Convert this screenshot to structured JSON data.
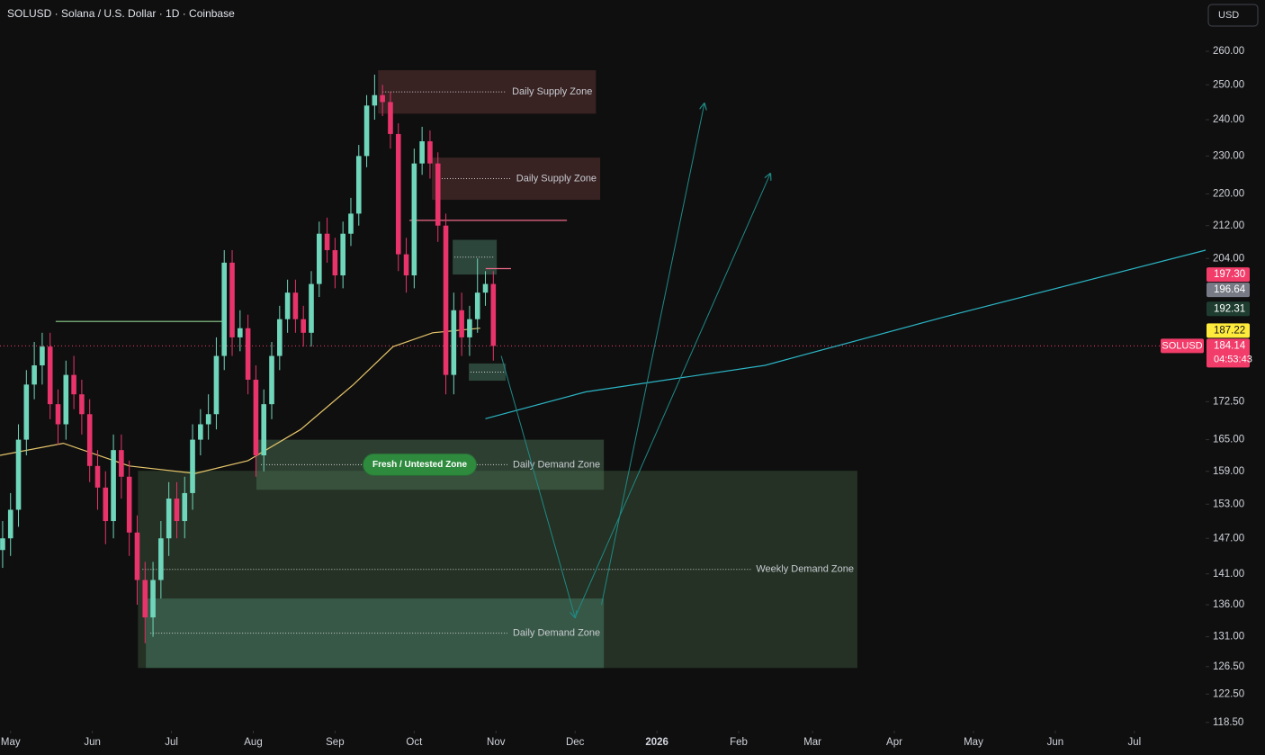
{
  "chart_data": {
    "type": "candlestick",
    "title": "SOLUSD · Solana / U.S. Dollar · 1D · Coinbase",
    "currency_button": "USD",
    "log_scale": true,
    "grid": false,
    "up_color": "#6fd6bb",
    "down_color": "#e8336b",
    "ylim": [
      117.6,
      276.1
    ],
    "yticks": [
      {
        "value": 260,
        "label": "260.00"
      },
      {
        "value": 250,
        "label": "250.00"
      },
      {
        "value": 240,
        "label": "240.00"
      },
      {
        "value": 230,
        "label": "230.00"
      },
      {
        "value": 220,
        "label": "220.00"
      },
      {
        "value": 212,
        "label": "212.00"
      },
      {
        "value": 204,
        "label": "204.00"
      },
      {
        "value": 172.5,
        "label": "172.50"
      },
      {
        "value": 165,
        "label": "165.00"
      },
      {
        "value": 159,
        "label": "159.00"
      },
      {
        "value": 153,
        "label": "153.00"
      },
      {
        "value": 147,
        "label": "147.00"
      },
      {
        "value": 141,
        "label": "141.00"
      },
      {
        "value": 136,
        "label": "136.00"
      },
      {
        "value": 131,
        "label": "131.00"
      },
      {
        "value": 126.5,
        "label": "126.50"
      },
      {
        "value": 122.5,
        "label": "122.50"
      },
      {
        "value": 118.5,
        "label": "118.50"
      }
    ],
    "xlim": [
      -4,
      453
    ],
    "xticks": [
      {
        "value": 0,
        "label": "May"
      },
      {
        "value": 31,
        "label": "Jun"
      },
      {
        "value": 61,
        "label": "Jul"
      },
      {
        "value": 92,
        "label": "Aug"
      },
      {
        "value": 123,
        "label": "Sep"
      },
      {
        "value": 153,
        "label": "Oct"
      },
      {
        "value": 184,
        "label": "Nov"
      },
      {
        "value": 214,
        "label": "Dec"
      },
      {
        "value": 245,
        "label": "2026"
      },
      {
        "value": 276,
        "label": "Feb"
      },
      {
        "value": 304,
        "label": "Mar"
      },
      {
        "value": 335,
        "label": "Apr"
      },
      {
        "value": 365,
        "label": "May"
      },
      {
        "value": 396,
        "label": "Jun"
      },
      {
        "value": 426,
        "label": "Jul"
      }
    ],
    "x": [
      -3,
      0,
      3,
      6,
      9,
      12,
      15,
      18,
      21,
      24,
      27,
      30,
      33,
      36,
      39,
      42,
      45,
      48,
      51,
      54,
      57,
      60,
      63,
      66,
      69,
      72,
      75,
      78,
      81,
      84,
      87,
      90,
      93,
      96,
      99,
      102,
      105,
      108,
      111,
      114,
      117,
      120,
      123,
      126,
      129,
      132,
      135,
      138,
      141,
      144,
      147,
      150,
      153,
      156,
      159,
      162,
      165,
      168,
      171,
      174,
      177,
      180,
      183
    ],
    "open": [
      145,
      147,
      152,
      165,
      176,
      180,
      184,
      172,
      168,
      178,
      174,
      170,
      160,
      156,
      150,
      163,
      158,
      148,
      140,
      134,
      140,
      147,
      154,
      150,
      155,
      165,
      168,
      170,
      182,
      203,
      186,
      188,
      177,
      162,
      172,
      182,
      190,
      196,
      190,
      187,
      198,
      210,
      206,
      200,
      210,
      215,
      230,
      244,
      247,
      245,
      236,
      205,
      200,
      228,
      234,
      228,
      212,
      178,
      192,
      186,
      190,
      196,
      198
    ],
    "high": [
      150,
      155,
      168,
      179,
      185,
      187,
      187,
      175,
      181,
      182,
      177,
      173,
      163,
      159,
      166,
      166,
      161,
      151,
      143,
      143,
      150,
      157,
      157,
      158,
      168,
      171,
      174,
      186,
      206,
      206,
      192,
      191,
      180,
      175,
      185,
      193,
      199,
      199,
      193,
      201,
      213,
      214,
      209,
      213,
      219,
      233,
      247,
      253,
      250,
      248,
      239,
      209,
      232,
      238,
      237,
      231,
      215,
      196,
      196,
      193,
      204,
      201,
      201
    ],
    "low": [
      142,
      144,
      149,
      162,
      173,
      176,
      169,
      164,
      165,
      171,
      166,
      157,
      152,
      146,
      147,
      154,
      144,
      136,
      130,
      131,
      137,
      144,
      147,
      147,
      152,
      162,
      165,
      167,
      179,
      182,
      183,
      174,
      158,
      159,
      169,
      179,
      187,
      187,
      184,
      184,
      195,
      203,
      197,
      197,
      207,
      212,
      227,
      240,
      241,
      232,
      201,
      196,
      197,
      225,
      224,
      208,
      174,
      174,
      182,
      182,
      187,
      193,
      181
    ],
    "close": [
      147,
      152,
      165,
      176,
      180,
      184,
      172,
      168,
      178,
      174,
      170,
      160,
      156,
      150,
      163,
      158,
      148,
      140,
      134,
      140,
      147,
      154,
      150,
      155,
      165,
      168,
      170,
      182,
      203,
      186,
      188,
      177,
      162,
      172,
      182,
      190,
      196,
      190,
      187,
      198,
      210,
      206,
      200,
      210,
      215,
      230,
      244,
      247,
      245,
      236,
      205,
      200,
      228,
      234,
      228,
      212,
      178,
      192,
      186,
      190,
      196,
      198,
      184.14
    ],
    "zones": [
      {
        "label": "Weekly Demand Zone",
        "x": [
          48.3,
          321.0
        ],
        "y": [
          126.3,
          159.1
        ],
        "color": "#3d5a3d"
      },
      {
        "label": "Daily  Supply Zone",
        "x": [
          139.3,
          221.9
        ],
        "y": [
          241.7,
          254.3
        ],
        "color": "#6b3a3a"
      },
      {
        "label": "Daily Supply Zone",
        "x": [
          159.7,
          223.5
        ],
        "y": [
          218.5,
          229.6
        ],
        "color": "#6b3a3a"
      },
      {
        "label": "Daily Demand Zone",
        "x": [
          93.2,
          224.9
        ],
        "y": [
          155.6,
          165.0
        ],
        "color": "#4f7a5a",
        "badge": "Fresh / Untested Zone"
      },
      {
        "label": "Daily Demand Zone",
        "x": [
          51.3,
          224.9
        ],
        "y": [
          126.3,
          137.0
        ],
        "color": "#4f8a72"
      }
    ],
    "boxes": [
      {
        "x": [
          167.6,
          184.3
        ],
        "y": [
          200.2,
          208.5
        ],
        "color": "#4f8a72"
      },
      {
        "x": [
          173.7,
          187.7
        ],
        "y": [
          176.8,
          180.4
        ],
        "color": "#4f8a72"
      }
    ],
    "lines": [
      {
        "color": "#e5c56a",
        "x": [
          -4,
          20,
          45,
          70,
          90,
          110,
          130,
          145,
          160,
          178
        ],
        "values": [
          162,
          164.3,
          160,
          158.6,
          161,
          167,
          176,
          184,
          187,
          188
        ]
      },
      {
        "color": "#2bb5c5",
        "x": [
          180,
          218,
          286,
          354,
          453
        ],
        "values": [
          169.1,
          174.5,
          180,
          190.5,
          206
        ]
      },
      {
        "color": "#8fd18f",
        "x": [
          17.1,
          80.2
        ],
        "values": [
          189.5,
          189.5
        ]
      },
      {
        "color": "#f06a8a",
        "x": [
          151.2,
          210.9
        ],
        "values": [
          213.3,
          213.3
        ]
      },
      {
        "color": "#f06a8a",
        "x": [
          180.1,
          189.7
        ],
        "values": [
          201.6,
          201.6
        ]
      }
    ],
    "arrows": [
      {
        "color": "#1f8a85",
        "x": [
          186,
          214
        ],
        "values": [
          182,
          134
        ]
      },
      {
        "color": "#1f8a85",
        "x": [
          224,
          263
        ],
        "values": [
          136,
          244.6
        ]
      },
      {
        "color": "#1f8a85",
        "x": [
          214,
          288
        ],
        "values": [
          134,
          225.3
        ]
      }
    ],
    "price_labels": [
      {
        "value": 197.3,
        "label": "197.30",
        "color": "#f23c6a"
      },
      {
        "value": 196.64,
        "label": "196.64",
        "color": "#787b86"
      },
      {
        "value": 192.31,
        "label": "192.31",
        "color": "#1e3d30"
      },
      {
        "value": 187.22,
        "label": "187.22",
        "color": "#ffeb3b"
      },
      {
        "value": 184.14,
        "label": "184.14",
        "color": "#f23c6a",
        "symbol": "SOLUSD",
        "countdown": "04:53:43"
      }
    ]
  }
}
